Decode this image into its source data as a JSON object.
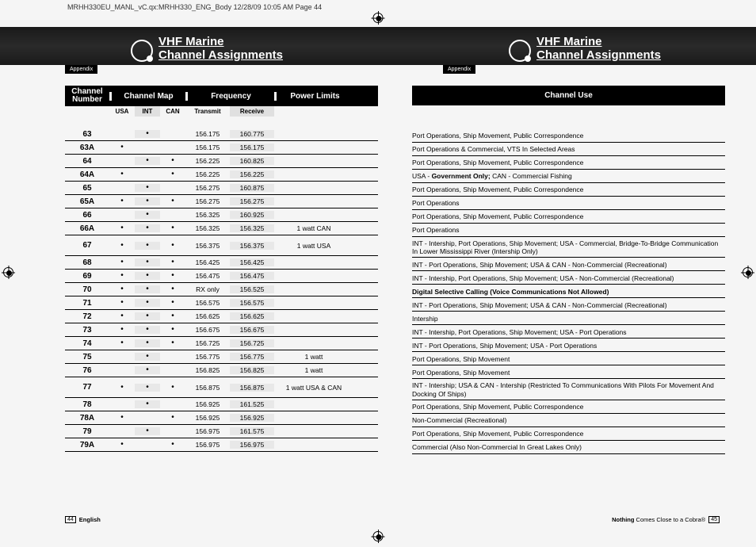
{
  "header_line": "MRHH330EU_MANL_vC.qx:MRHH330_ENG_Body  12/28/09  10:05 AM  Page 44",
  "band": {
    "title_line1": "VHF Marine",
    "title_line2": "Channel Assignments",
    "appendix": "Appendix"
  },
  "left": {
    "head": {
      "channel_number": "Channel\nNumber",
      "channel_map": "Channel Map",
      "frequency": "Frequency",
      "power_limits": "Power Limits",
      "usa": "USA",
      "int": "INT",
      "can": "CAN",
      "transmit": "Transmit",
      "receive": "Receive"
    },
    "rows": [
      {
        "ch": "63",
        "usa": "",
        "int": "•",
        "can": "",
        "tx": "156.175",
        "rx": "160.775",
        "pwr": "",
        "tall": false
      },
      {
        "ch": "63A",
        "usa": "•",
        "int": "",
        "can": "",
        "tx": "156.175",
        "rx": "156.175",
        "pwr": "",
        "tall": false
      },
      {
        "ch": "64",
        "usa": "",
        "int": "•",
        "can": "•",
        "tx": "156.225",
        "rx": "160.825",
        "pwr": "",
        "tall": false
      },
      {
        "ch": "64A",
        "usa": "•",
        "int": "",
        "can": "•",
        "tx": "156.225",
        "rx": "156.225",
        "pwr": "",
        "tall": false
      },
      {
        "ch": "65",
        "usa": "",
        "int": "•",
        "can": "",
        "tx": "156.275",
        "rx": "160.875",
        "pwr": "",
        "tall": false
      },
      {
        "ch": "65A",
        "usa": "•",
        "int": "•",
        "can": "•",
        "tx": "156.275",
        "rx": "156.275",
        "pwr": "",
        "tall": false
      },
      {
        "ch": "66",
        "usa": "",
        "int": "•",
        "can": "",
        "tx": "156.325",
        "rx": "160.925",
        "pwr": "",
        "tall": false
      },
      {
        "ch": "66A",
        "usa": "•",
        "int": "•",
        "can": "•",
        "tx": "156.325",
        "rx": "156.325",
        "pwr": "1 watt CAN",
        "tall": false
      },
      {
        "ch": "67",
        "usa": "•",
        "int": "•",
        "can": "•",
        "tx": "156.375",
        "rx": "156.375",
        "pwr": "1 watt USA",
        "tall": true
      },
      {
        "ch": "68",
        "usa": "•",
        "int": "•",
        "can": "•",
        "tx": "156.425",
        "rx": "156.425",
        "pwr": "",
        "tall": false
      },
      {
        "ch": "69",
        "usa": "•",
        "int": "•",
        "can": "•",
        "tx": "156.475",
        "rx": "156.475",
        "pwr": "",
        "tall": false
      },
      {
        "ch": "70",
        "usa": "•",
        "int": "•",
        "can": "•",
        "tx": "RX only",
        "rx": "156.525",
        "pwr": "",
        "tall": false
      },
      {
        "ch": "71",
        "usa": "•",
        "int": "•",
        "can": "•",
        "tx": "156.575",
        "rx": "156.575",
        "pwr": "",
        "tall": false
      },
      {
        "ch": "72",
        "usa": "•",
        "int": "•",
        "can": "•",
        "tx": "156.625",
        "rx": "156.625",
        "pwr": "",
        "tall": false
      },
      {
        "ch": "73",
        "usa": "•",
        "int": "•",
        "can": "•",
        "tx": "156.675",
        "rx": "156.675",
        "pwr": "",
        "tall": false
      },
      {
        "ch": "74",
        "usa": "•",
        "int": "•",
        "can": "•",
        "tx": "156.725",
        "rx": "156.725",
        "pwr": "",
        "tall": false
      },
      {
        "ch": "75",
        "usa": "",
        "int": "•",
        "can": "",
        "tx": "156.775",
        "rx": "156.775",
        "pwr": "1 watt",
        "tall": false
      },
      {
        "ch": "76",
        "usa": "",
        "int": "•",
        "can": "",
        "tx": "156.825",
        "rx": "156.825",
        "pwr": "1 watt",
        "tall": false
      },
      {
        "ch": "77",
        "usa": "•",
        "int": "•",
        "can": "•",
        "tx": "156.875",
        "rx": "156.875",
        "pwr": "1 watt USA & CAN",
        "tall": true
      },
      {
        "ch": "78",
        "usa": "",
        "int": "•",
        "can": "",
        "tx": "156.925",
        "rx": "161.525",
        "pwr": "",
        "tall": false
      },
      {
        "ch": "78A",
        "usa": "•",
        "int": "",
        "can": "•",
        "tx": "156.925",
        "rx": "156.925",
        "pwr": "",
        "tall": false
      },
      {
        "ch": "79",
        "usa": "",
        "int": "•",
        "can": "",
        "tx": "156.975",
        "rx": "161.575",
        "pwr": "",
        "tall": false
      },
      {
        "ch": "79A",
        "usa": "•",
        "int": "",
        "can": "•",
        "tx": "156.975",
        "rx": "156.975",
        "pwr": "",
        "tall": false
      }
    ]
  },
  "right": {
    "head": "Channel Use",
    "rows": [
      {
        "html": "Port Operations, Ship Movement, Public Correspondence",
        "tall": false
      },
      {
        "html": "Port Operations & Commercial, VTS In Selected Areas",
        "tall": false
      },
      {
        "html": "Port Operations, Ship Movement, Public Correspondence",
        "tall": false
      },
      {
        "html": "USA - <b>Government Only;</b>  CAN - Commercial Fishing",
        "tall": false
      },
      {
        "html": "Port Operations, Ship Movement, Public Correspondence",
        "tall": false
      },
      {
        "html": "Port Operations",
        "tall": false
      },
      {
        "html": "Port Operations, Ship Movement, Public Correspondence",
        "tall": false
      },
      {
        "html": "Port Operations",
        "tall": false
      },
      {
        "html": "INT - Intership, Port Operations, Ship Movement; USA - Commercial, Bridge-To-Bridge Communication In Lower Mississippi River (Intership Only)",
        "tall": true
      },
      {
        "html": "INT - Port Operations, Ship Movement; USA & CAN - Non-Commercial (Recreational)",
        "tall": false
      },
      {
        "html": "INT - Intership, Port Operations, Ship Movement; USA - Non-Commercial (Recreational)",
        "tall": false
      },
      {
        "html": "<b>Digital Selective Calling (Voice Communications Not Allowed)</b>",
        "tall": false
      },
      {
        "html": "INT - Port Operations, Ship Movement; USA & CAN - Non-Commercial (Recreational)",
        "tall": false
      },
      {
        "html": "Intership",
        "tall": false
      },
      {
        "html": "INT - Intership, Port Operations, Ship Movement; USA - Port Operations",
        "tall": false
      },
      {
        "html": "INT - Port Operations, Ship Movement; USA - Port Operations",
        "tall": false
      },
      {
        "html": "Port Operations, Ship Movement",
        "tall": false
      },
      {
        "html": "Port Operations, Ship Movement",
        "tall": false
      },
      {
        "html": "INT - Intership; USA & CAN - Intership (Restricted To Communications With Pilots For Movement And Docking Of Ships)",
        "tall": true
      },
      {
        "html": "Port Operations, Ship Movement, Public Correspondence",
        "tall": false
      },
      {
        "html": "Non-Commercial (Recreational)",
        "tall": false
      },
      {
        "html": "Port Operations, Ship Movement, Public Correspondence",
        "tall": false
      },
      {
        "html": "Commercial (Also Non-Commercial In Great Lakes Only)",
        "tall": false
      }
    ]
  },
  "footer": {
    "left_page": "44",
    "left_text": "English",
    "right_text_bold": "Nothing",
    "right_text_rest": " Comes Close to a Cobra®",
    "right_page": "45"
  }
}
